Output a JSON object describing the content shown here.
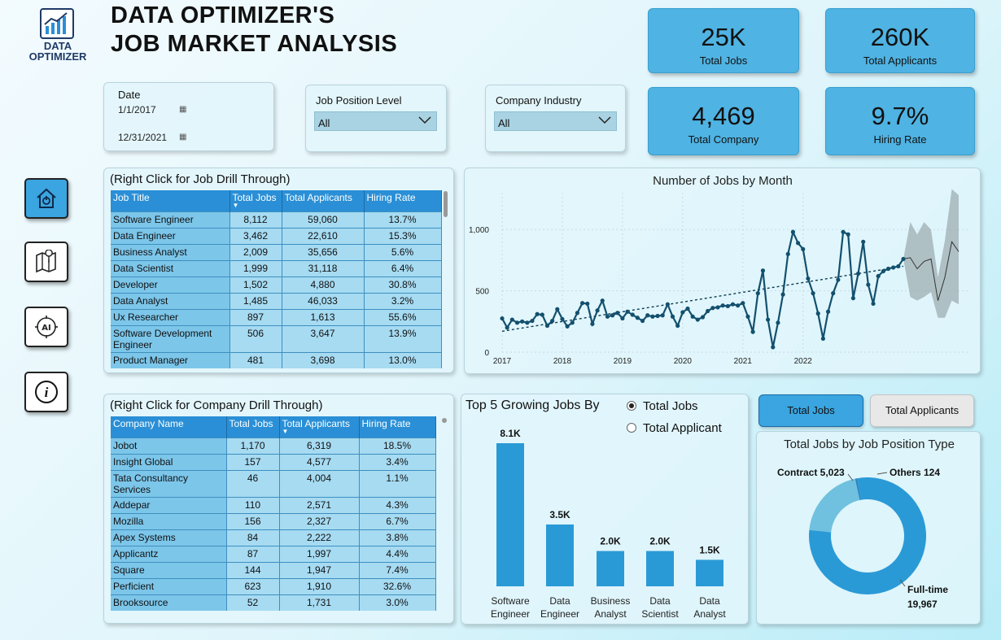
{
  "header": {
    "logo_line1": "DATA",
    "logo_line2": "OPTIMIZER",
    "title_line1": "DATA OPTIMIZER'S",
    "title_line2": "JOB MARKET ANALYSIS"
  },
  "kpis": {
    "total_jobs": {
      "value": "25K",
      "label": "Total Jobs"
    },
    "total_applicants": {
      "value": "260K",
      "label": "Total Applicants"
    },
    "total_company": {
      "value": "4,469",
      "label": "Total Company"
    },
    "hiring_rate": {
      "value": "9.7%",
      "label": "Hiring Rate"
    }
  },
  "filters": {
    "date": {
      "label": "Date",
      "start": "1/1/2017",
      "end": "12/31/2021"
    },
    "job_level": {
      "label": "Job Position Level",
      "value": "All"
    },
    "industry": {
      "label": "Company Industry",
      "value": "All"
    }
  },
  "nav": [
    "home-icon",
    "map-icon",
    "ai-icon",
    "info-icon"
  ],
  "job_table": {
    "title": "(Right Click for Job Drill Through)",
    "columns": [
      "Job Title",
      "Total Jobs",
      "Total Applicants",
      "Hiring Rate"
    ],
    "rows": [
      [
        "Software Engineer",
        "8,112",
        "59,060",
        "13.7%"
      ],
      [
        "Data Engineer",
        "3,462",
        "22,610",
        "15.3%"
      ],
      [
        "Business Analyst",
        "2,009",
        "35,656",
        "5.6%"
      ],
      [
        "Data Scientist",
        "1,999",
        "31,118",
        "6.4%"
      ],
      [
        "Developer",
        "1,502",
        "4,880",
        "30.8%"
      ],
      [
        "Data Analyst",
        "1,485",
        "46,033",
        "3.2%"
      ],
      [
        "Ux Researcher",
        "897",
        "1,613",
        "55.6%"
      ],
      [
        "Software Development Engineer",
        "506",
        "3,647",
        "13.9%"
      ],
      [
        "Product Manager",
        "481",
        "3,698",
        "13.0%"
      ]
    ]
  },
  "company_table": {
    "title": "(Right Click for Company Drill Through)",
    "columns": [
      "Company Name",
      "Total Jobs",
      "Total Applicants",
      "Hiring Rate"
    ],
    "rows": [
      [
        "Jobot",
        "1,170",
        "6,319",
        "18.5%"
      ],
      [
        "Insight Global",
        "157",
        "4,577",
        "3.4%"
      ],
      [
        "Tata Consultancy Services",
        "46",
        "4,004",
        "1.1%"
      ],
      [
        "Addepar",
        "110",
        "2,571",
        "4.3%"
      ],
      [
        "Mozilla",
        "156",
        "2,327",
        "6.7%"
      ],
      [
        "Apex Systems",
        "84",
        "2,222",
        "3.8%"
      ],
      [
        "Applicantz",
        "87",
        "1,997",
        "4.4%"
      ],
      [
        "Square",
        "144",
        "1,947",
        "7.4%"
      ],
      [
        "Perficient",
        "623",
        "1,910",
        "32.6%"
      ],
      [
        "Brooksource",
        "52",
        "1,731",
        "3.0%"
      ]
    ]
  },
  "growing": {
    "title": "Top 5 Growing Jobs By",
    "options": [
      "Total Jobs",
      "Total Applicant"
    ],
    "selected": 0
  },
  "toggles": {
    "jobs": "Total Jobs",
    "applicants": "Total Applicants"
  },
  "colors": {
    "accent": "#2a9ad6",
    "kpi": "#4fb3e3",
    "line": "#13506e",
    "donut_main": "#2a9ad6",
    "donut_light": "#6fc1df"
  },
  "chart_data": [
    {
      "type": "line",
      "title": "Number of Jobs by Month",
      "x_ticks": [
        "2017",
        "2018",
        "2019",
        "2020",
        "2021",
        "2022"
      ],
      "y_ticks": [
        "0",
        "500",
        "1,000"
      ],
      "ylim": [
        0,
        1300
      ],
      "values": [
        275,
        200,
        265,
        240,
        250,
        240,
        255,
        310,
        305,
        215,
        255,
        350,
        270,
        210,
        240,
        320,
        400,
        395,
        230,
        340,
        420,
        290,
        300,
        320,
        275,
        330,
        305,
        280,
        255,
        300,
        290,
        295,
        300,
        390,
        290,
        215,
        325,
        355,
        290,
        265,
        285,
        335,
        360,
        365,
        380,
        375,
        390,
        380,
        400,
        290,
        165,
        480,
        665,
        265,
        40,
        240,
        470,
        800,
        980,
        890,
        840,
        600,
        480,
        315,
        110,
        330,
        480,
        590,
        980,
        960,
        440,
        640,
        900,
        550,
        395,
        620,
        660,
        680,
        690,
        700,
        760
      ],
      "forecast": {
        "center": [
          770,
          680,
          740,
          760,
          420,
          610,
          900,
          820
        ],
        "lower": [
          450,
          420,
          450,
          490,
          280,
          280,
          420,
          390
        ],
        "upper": [
          1060,
          960,
          1060,
          1000,
          610,
          910,
          1330,
          1280
        ]
      },
      "trendline": [
        170,
        700
      ]
    },
    {
      "type": "bar",
      "categories": [
        "Software Engineer",
        "Data Engineer",
        "Business Analyst",
        "Data Scientist",
        "Data Analyst"
      ],
      "values": [
        8100,
        3500,
        2000,
        2000,
        1500
      ],
      "labels": [
        "8.1K",
        "3.5K",
        "2.0K",
        "2.0K",
        "1.5K"
      ]
    },
    {
      "type": "pie",
      "title": "Total Jobs by Job Position Type",
      "slices": [
        {
          "name": "Full-time",
          "value": 19967,
          "label_line1": "Full-time",
          "label_line2": "19,967"
        },
        {
          "name": "Contract",
          "value": 5023,
          "label": "Contract 5,023"
        },
        {
          "name": "Others",
          "value": 124,
          "label": "Others 124"
        }
      ]
    }
  ]
}
